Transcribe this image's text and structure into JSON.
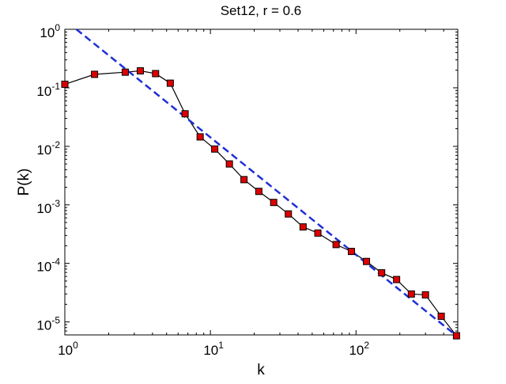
{
  "chart_data": {
    "type": "line",
    "title": "Set12, r = 0.6",
    "xlabel": "k",
    "ylabel": "P(k)",
    "xscale": "log",
    "yscale": "log",
    "xlim": [
      1,
      500
    ],
    "ylim": [
      6e-06,
      1
    ],
    "grid": false,
    "legend": "none",
    "x_ticks": [
      {
        "value": 1,
        "base": "10",
        "exp": "0"
      },
      {
        "value": 10,
        "base": "10",
        "exp": "1"
      },
      {
        "value": 100,
        "base": "10",
        "exp": "2"
      }
    ],
    "y_ticks": [
      {
        "value": 1,
        "base": "10",
        "exp": "0"
      },
      {
        "value": 0.1,
        "base": "10",
        "exp": "-1"
      },
      {
        "value": 0.01,
        "base": "10",
        "exp": "-2"
      },
      {
        "value": 0.001,
        "base": "10",
        "exp": "-3"
      },
      {
        "value": 0.0001,
        "base": "10",
        "exp": "-4"
      },
      {
        "value": 1e-05,
        "base": "10",
        "exp": "-5"
      }
    ],
    "series": [
      {
        "style": "solid-with-square-markers",
        "color": "#000000",
        "marker_color": "#dd0000",
        "x": [
          1.0,
          1.6,
          2.6,
          3.3,
          4.2,
          5.3,
          6.7,
          8.5,
          10.7,
          13.5,
          17.0,
          21.5,
          27.2,
          34.3,
          43.3,
          54.7,
          73.0,
          93.0,
          118.0,
          150.0,
          190.0,
          240.0,
          300.0,
          385.0,
          490.0
        ],
        "y": [
          0.115,
          0.17,
          0.185,
          0.195,
          0.175,
          0.12,
          0.036,
          0.0145,
          0.009,
          0.005,
          0.0027,
          0.0017,
          0.0011,
          0.0007,
          0.00042,
          0.00033,
          0.00021,
          0.00016,
          0.000108,
          6.9e-05,
          5.3e-05,
          3e-05,
          2.9e-05,
          1.25e-05,
          5.8e-06
        ]
      },
      {
        "style": "dashed-fit",
        "color": "#1f2fd6",
        "x": [
          1.2,
          490.0
        ],
        "y": [
          1.0,
          5.8e-06
        ]
      }
    ]
  }
}
